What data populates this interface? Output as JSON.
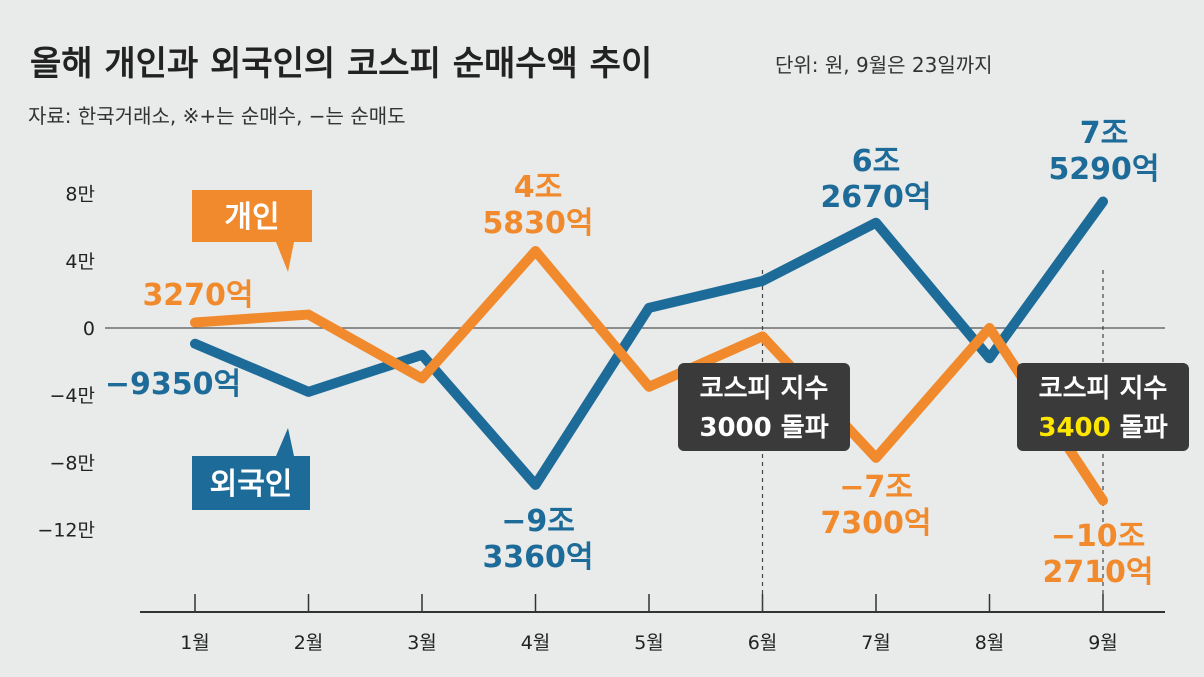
{
  "title": "올해 개인과 외국인의 코스피 순매수액 추이",
  "unit": "단위: 원, 9월은 23일까지",
  "source": "자료: 한국거래소, ※+는 순매수, −는 순매도",
  "colors": {
    "individual": "#f08a2c",
    "foreign": "#1d6b98",
    "annotation_bg": "#3a3a3a",
    "highlight": "#ffe600"
  },
  "chart_data": {
    "type": "line",
    "categories": [
      "1월",
      "2월",
      "3월",
      "4월",
      "5월",
      "6월",
      "7월",
      "8월",
      "9월"
    ],
    "y_ticks": [
      {
        "value": 8,
        "label": "8만"
      },
      {
        "value": 4,
        "label": "4만"
      },
      {
        "value": 0,
        "label": "0"
      },
      {
        "value": -4,
        "label": "−4만"
      },
      {
        "value": -8,
        "label": "−8만"
      },
      {
        "value": -12,
        "label": "−12만"
      }
    ],
    "ylim": [
      -16,
      10
    ],
    "series": [
      {
        "name": "개인",
        "key": "individual",
        "values": [
          0.327,
          0.8,
          -3.0,
          4.583,
          -3.5,
          -0.5,
          -7.73,
          0.0,
          -10.271
        ]
      },
      {
        "name": "외국인",
        "key": "foreign",
        "values": [
          -0.935,
          -3.8,
          -1.6,
          -9.336,
          1.2,
          2.8,
          6.267,
          -1.8,
          7.529
        ]
      }
    ],
    "data_labels": {
      "individual": [
        {
          "index": 0,
          "lines": [
            "3270억"
          ]
        },
        {
          "index": 3,
          "lines": [
            "4조",
            "5830억"
          ]
        },
        {
          "index": 6,
          "lines": [
            "−7조",
            "7300억"
          ]
        },
        {
          "index": 8,
          "lines": [
            "−10조",
            "2710억"
          ]
        }
      ],
      "foreign": [
        {
          "index": 0,
          "lines": [
            "−9350억"
          ]
        },
        {
          "index": 3,
          "lines": [
            "−9조",
            "3360억"
          ]
        },
        {
          "index": 6,
          "lines": [
            "6조",
            "2670억"
          ]
        },
        {
          "index": 8,
          "lines": [
            "7조",
            "5290억"
          ]
        }
      ]
    },
    "annotations": [
      {
        "index": 5,
        "line1": "코스피 지수",
        "num": "3000",
        "suffix": " 돌파"
      },
      {
        "index": 8,
        "line1": "코스피 지수",
        "num": "3400",
        "suffix": " 돌파"
      }
    ]
  }
}
